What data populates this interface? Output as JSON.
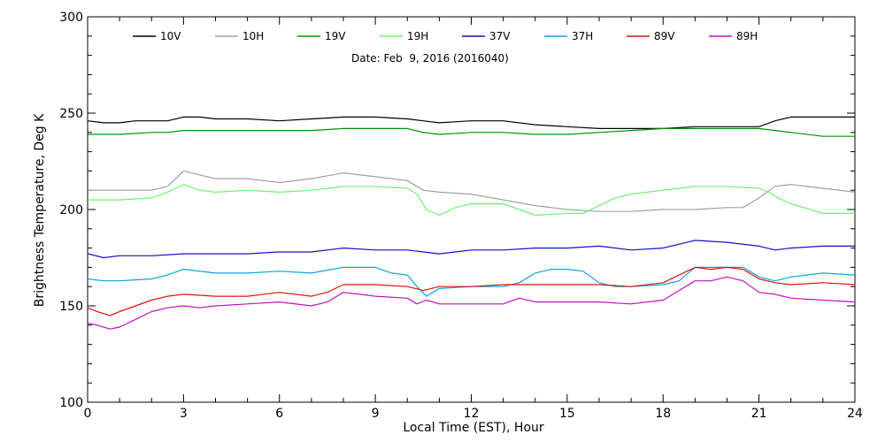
{
  "chart_data": {
    "type": "line",
    "title": "",
    "annotation": "Date: Feb  9, 2016 (2016040)",
    "xlabel": "Local Time (EST), Hour",
    "ylabel": "Brightness Temperature, Deg K",
    "xlim": [
      0,
      24
    ],
    "ylim": [
      100,
      300
    ],
    "xticks": [
      0,
      3,
      6,
      9,
      12,
      15,
      18,
      21,
      24
    ],
    "yticks": [
      100,
      150,
      200,
      250,
      300
    ],
    "grid": false,
    "legend_position": "top",
    "series": [
      {
        "name": "10V",
        "color": "#000000",
        "x": [
          0,
          0.5,
          1,
          1.5,
          2,
          2.5,
          3,
          3.5,
          4,
          5,
          6,
          7,
          8,
          9,
          10,
          10.5,
          11,
          12,
          13,
          14,
          15,
          16,
          17,
          18,
          19,
          20,
          20.5,
          21,
          21.5,
          22,
          23,
          24
        ],
        "y": [
          246,
          245,
          245,
          246,
          246,
          246,
          248,
          248,
          247,
          247,
          246,
          247,
          248,
          248,
          247,
          246,
          245,
          246,
          246,
          244,
          243,
          242,
          242,
          242,
          243,
          243,
          243,
          243,
          246,
          248,
          248,
          248
        ]
      },
      {
        "name": "10H",
        "color": "#a0a0a0",
        "x": [
          0,
          1,
          2,
          2.5,
          3,
          3.5,
          4,
          5,
          6,
          7,
          8,
          9,
          10,
          10.5,
          11,
          12,
          13,
          14,
          15,
          16,
          17,
          18,
          19,
          20,
          20.5,
          21,
          21.5,
          22,
          23,
          24
        ],
        "y": [
          210,
          210,
          210,
          212,
          220,
          218,
          216,
          216,
          214,
          216,
          219,
          217,
          215,
          210,
          209,
          208,
          205,
          202,
          200,
          199,
          199,
          200,
          200,
          201,
          201,
          206,
          212,
          213,
          211,
          209
        ]
      },
      {
        "name": "19V",
        "color": "#009000",
        "x": [
          0,
          1,
          2,
          2.5,
          3,
          4,
          5,
          6,
          7,
          8,
          9,
          10,
          10.5,
          11,
          12,
          13,
          14,
          15,
          16,
          17,
          18,
          19,
          20,
          20.5,
          21,
          22,
          23,
          24
        ],
        "y": [
          239,
          239,
          240,
          240,
          241,
          241,
          241,
          241,
          241,
          242,
          242,
          242,
          240,
          239,
          240,
          240,
          239,
          239,
          240,
          241,
          242,
          242,
          242,
          242,
          242,
          240,
          238,
          238
        ]
      },
      {
        "name": "19H",
        "color": "#70f070",
        "x": [
          0,
          1,
          2,
          2.5,
          3,
          3.5,
          4,
          5,
          6,
          7,
          8,
          9,
          10,
          10.3,
          10.6,
          11,
          11.5,
          12,
          13,
          13.5,
          14,
          15,
          15.5,
          16,
          16.5,
          17,
          18,
          19,
          20,
          21,
          21.3,
          21.6,
          22,
          23,
          24
        ],
        "y": [
          205,
          205,
          206,
          209,
          213,
          210,
          209,
          210,
          209,
          210,
          212,
          212,
          211,
          208,
          200,
          197,
          201,
          203,
          203,
          200,
          197,
          198,
          198,
          202,
          206,
          208,
          210,
          212,
          212,
          211,
          209,
          206,
          203,
          198,
          198
        ]
      },
      {
        "name": "37V",
        "color": "#1010c0",
        "x": [
          0,
          0.5,
          1,
          2,
          3,
          4,
          5,
          6,
          7,
          8,
          9,
          10,
          10.5,
          11,
          12,
          13,
          14,
          15,
          16,
          17,
          18,
          18.5,
          19,
          20,
          21,
          21.5,
          22,
          23,
          24
        ],
        "y": [
          177,
          175,
          176,
          176,
          177,
          177,
          177,
          178,
          178,
          180,
          179,
          179,
          178,
          177,
          179,
          179,
          180,
          180,
          181,
          179,
          180,
          182,
          184,
          183,
          181,
          179,
          180,
          181,
          181
        ]
      },
      {
        "name": "37H",
        "color": "#10a0e0",
        "x": [
          0,
          0.5,
          1,
          2,
          2.5,
          3,
          4,
          5,
          6,
          7,
          8,
          9,
          9.5,
          10,
          10.3,
          10.6,
          11,
          12,
          13,
          13.5,
          14,
          14.5,
          15,
          15.5,
          16,
          16.5,
          17,
          18,
          18.5,
          19,
          20,
          20.5,
          21,
          21.5,
          22,
          23,
          24
        ],
        "y": [
          164,
          163,
          163,
          164,
          166,
          169,
          167,
          167,
          168,
          167,
          170,
          170,
          167,
          166,
          160,
          155,
          159,
          160,
          160,
          162,
          167,
          169,
          169,
          168,
          162,
          160,
          160,
          161,
          163,
          170,
          170,
          170,
          165,
          163,
          165,
          167,
          166
        ]
      },
      {
        "name": "89V",
        "color": "#e01010",
        "x": [
          0,
          0.3,
          0.7,
          1,
          1.5,
          2,
          2.5,
          3,
          4,
          5,
          6,
          7,
          7.5,
          8,
          9,
          10,
          10.5,
          11,
          12,
          13,
          14,
          15,
          16,
          17,
          18,
          18.5,
          19,
          19.5,
          20,
          20.5,
          21,
          21.5,
          22,
          23,
          24
        ],
        "y": [
          149,
          147,
          145,
          147,
          150,
          153,
          155,
          156,
          155,
          155,
          157,
          155,
          157,
          161,
          161,
          160,
          158,
          160,
          160,
          161,
          161,
          161,
          161,
          160,
          162,
          166,
          170,
          169,
          170,
          169,
          164,
          162,
          161,
          162,
          161
        ]
      },
      {
        "name": "89H",
        "color": "#c010c0",
        "x": [
          0,
          0.3,
          0.7,
          1,
          1.5,
          2,
          2.5,
          3,
          3.5,
          4,
          5,
          6,
          7,
          7.5,
          8,
          8.5,
          9,
          10,
          10.3,
          10.6,
          11,
          12,
          13,
          13.5,
          14,
          15,
          16,
          17,
          18,
          18.5,
          19,
          19.5,
          20,
          20.5,
          21,
          21.5,
          22,
          23,
          24
        ],
        "y": [
          141,
          140,
          138,
          139,
          143,
          147,
          149,
          150,
          149,
          150,
          151,
          152,
          150,
          152,
          157,
          156,
          155,
          154,
          151,
          153,
          151,
          151,
          151,
          154,
          152,
          152,
          152,
          151,
          153,
          158,
          163,
          163,
          165,
          163,
          157,
          156,
          154,
          153,
          152
        ]
      }
    ]
  }
}
